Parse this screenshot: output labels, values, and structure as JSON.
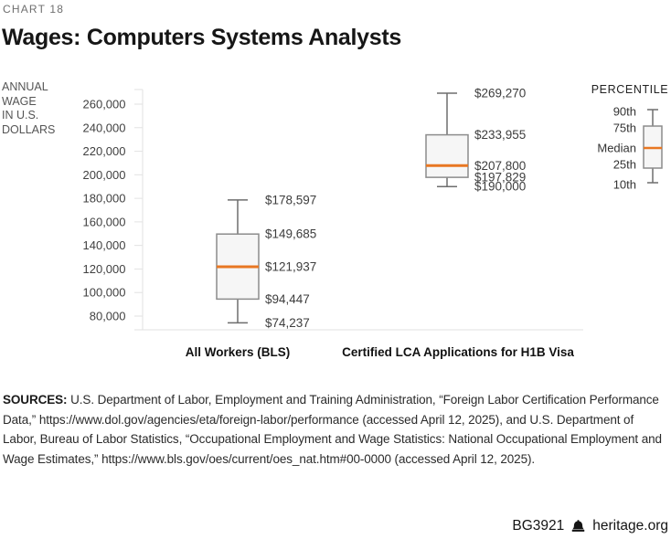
{
  "header": {
    "chart_number": "CHART 18",
    "title": "Wages: Computers Systems Analysts"
  },
  "y_axis_unit_label": "ANNUAL\nWAGE\nIN U.S.\nDOLLARS",
  "chart_data": {
    "type": "boxplot",
    "title": "Wages: Computers Systems Analysts",
    "ylabel": "ANNUAL WAGE IN U.S. DOLLARS",
    "value_prefix": "$",
    "y_ticks": [
      260000,
      240000,
      220000,
      200000,
      180000,
      160000,
      140000,
      120000,
      100000,
      80000
    ],
    "ylim": [
      72000,
      272000
    ],
    "grid": "y-ticks-only",
    "legend_position": "top-right",
    "categories": [
      "All Workers (BLS)",
      "Certified LCA Applications for H1B Visa"
    ],
    "series": [
      {
        "name": "All Workers (BLS)",
        "p10": 74237,
        "p25": 94447,
        "median": 121937,
        "p75": 149685,
        "p90": 178597
      },
      {
        "name": "Certified LCA Applications for H1B Visa",
        "p10": 190000,
        "p25": 197829,
        "median": 207800,
        "p75": 233955,
        "p90": 269270
      }
    ],
    "colors": {
      "median": "#e87722",
      "box_fill": "#f6f6f6",
      "box_stroke": "#8c8c8c",
      "whisker": "#6e6e6e",
      "axis": "#e2e2e2",
      "tick_label": "#414141",
      "value_label": "#3d3d3d"
    }
  },
  "legend": {
    "title": "PERCENTILE",
    "labels": [
      "90th",
      "75th",
      "Median",
      "25th",
      "10th"
    ]
  },
  "sources": {
    "label": "SOURCES:",
    "text": " U.S. Department of Labor, Employment and Training Administration, “Foreign Labor Certification Performance Data,” https://www.dol.gov/agencies/eta/foreign-labor/performance (accessed April 12, 2025), and U.S. Department of Labor, Bureau of Labor Statistics, “Occupational Employment and Wage Statistics: National Occupational Employment and Wage Estimates,” https://www.bls.gov/oes/current/oes_nat.htm#00-0000 (accessed April 12, 2025)."
  },
  "footer": {
    "report_id": "BG3921",
    "site": "heritage.org",
    "logo": "liberty-bell-icon"
  }
}
